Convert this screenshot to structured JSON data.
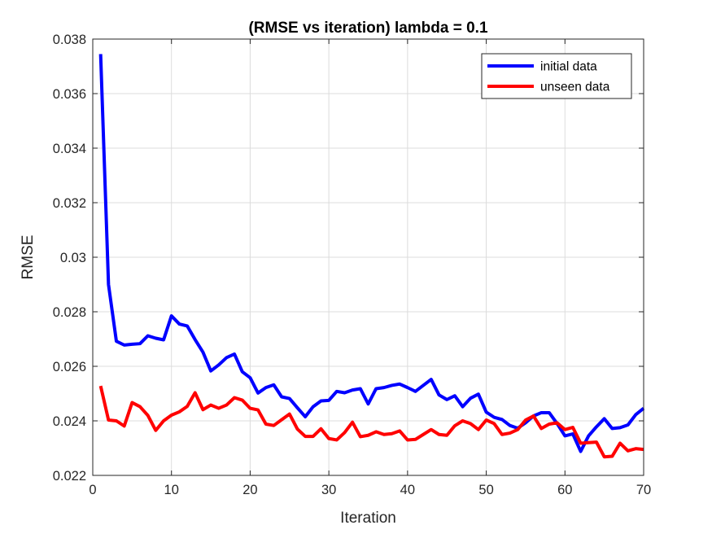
{
  "chart_data": {
    "type": "line",
    "title": "(RMSE vs iteration) lambda = 0.1",
    "xlabel": "Iteration",
    "ylabel": "RMSE",
    "xlim": [
      0,
      70
    ],
    "ylim": [
      0.022,
      0.038
    ],
    "xticks": [
      0,
      10,
      20,
      30,
      40,
      50,
      60,
      70
    ],
    "xtick_labels": [
      "0",
      "10",
      "20",
      "30",
      "40",
      "50",
      "60",
      "70"
    ],
    "yticks": [
      0.022,
      0.024,
      0.026,
      0.028,
      0.03,
      0.032,
      0.034,
      0.036,
      0.038
    ],
    "ytick_labels": [
      "0.022",
      "0.024",
      "0.026",
      "0.028",
      "0.03",
      "0.032",
      "0.034",
      "0.036",
      "0.038"
    ],
    "grid": true,
    "legend_position": "top-right",
    "x": [
      1,
      2,
      3,
      4,
      5,
      6,
      7,
      8,
      9,
      10,
      11,
      12,
      13,
      14,
      15,
      16,
      17,
      18,
      19,
      20,
      21,
      22,
      23,
      24,
      25,
      26,
      27,
      28,
      29,
      30,
      31,
      32,
      33,
      34,
      35,
      36,
      37,
      38,
      39,
      40,
      41,
      42,
      43,
      44,
      45,
      46,
      47,
      48,
      49,
      50,
      51,
      52,
      53,
      54,
      55,
      56,
      57,
      58,
      59,
      60,
      61,
      62,
      63,
      64,
      65,
      66,
      67,
      68,
      69,
      70
    ],
    "series": [
      {
        "name": "initial data",
        "color": "#0000ff",
        "values": [
          0.03745,
          0.029,
          0.02692,
          0.02678,
          0.02681,
          0.02683,
          0.02712,
          0.02703,
          0.02697,
          0.02785,
          0.02755,
          0.02748,
          0.02698,
          0.02652,
          0.02583,
          0.02605,
          0.02632,
          0.02645,
          0.0258,
          0.02558,
          0.02502,
          0.02522,
          0.02532,
          0.02488,
          0.02482,
          0.02448,
          0.02415,
          0.02452,
          0.02473,
          0.02475,
          0.02508,
          0.02503,
          0.02513,
          0.02518,
          0.02462,
          0.02518,
          0.02522,
          0.0253,
          0.02535,
          0.02522,
          0.02508,
          0.0253,
          0.02552,
          0.02495,
          0.02478,
          0.02492,
          0.02452,
          0.02483,
          0.02498,
          0.02432,
          0.02413,
          0.02405,
          0.02383,
          0.02373,
          0.02393,
          0.02418,
          0.0243,
          0.0243,
          0.0239,
          0.02345,
          0.02352,
          0.02288,
          0.02345,
          0.02378,
          0.02408,
          0.02372,
          0.02375,
          0.02385,
          0.02423,
          0.02446
        ]
      },
      {
        "name": "unseen data",
        "color": "#ff0000",
        "values": [
          0.02528,
          0.02403,
          0.024,
          0.02381,
          0.02467,
          0.02452,
          0.0242,
          0.02365,
          0.024,
          0.02421,
          0.02433,
          0.02453,
          0.02503,
          0.02441,
          0.02458,
          0.02446,
          0.02458,
          0.02485,
          0.02476,
          0.02446,
          0.0244,
          0.02388,
          0.02383,
          0.02404,
          0.02425,
          0.0237,
          0.02343,
          0.02343,
          0.02371,
          0.02335,
          0.0233,
          0.02357,
          0.02395,
          0.02342,
          0.02347,
          0.0236,
          0.0235,
          0.02353,
          0.02363,
          0.0233,
          0.02332,
          0.0235,
          0.02368,
          0.0235,
          0.02347,
          0.02382,
          0.024,
          0.0239,
          0.02368,
          0.02403,
          0.0239,
          0.0235,
          0.02355,
          0.02368,
          0.02403,
          0.02418,
          0.02372,
          0.02388,
          0.02393,
          0.02368,
          0.02376,
          0.02318,
          0.0232,
          0.02322,
          0.02268,
          0.0227,
          0.02318,
          0.0229,
          0.02298,
          0.02295
        ]
      }
    ]
  }
}
